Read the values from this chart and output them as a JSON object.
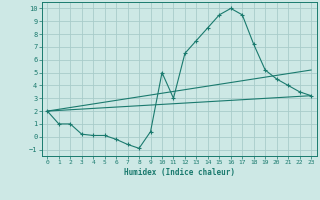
{
  "xlabel": "Humidex (Indice chaleur)",
  "ylabel": "",
  "bg_color": "#cde8e5",
  "grid_color": "#a8ccca",
  "line_color": "#1a7a6e",
  "xlim": [
    -0.5,
    23.5
  ],
  "ylim": [
    -1.5,
    10.5
  ],
  "xticks": [
    0,
    1,
    2,
    3,
    4,
    5,
    6,
    7,
    8,
    9,
    10,
    11,
    12,
    13,
    14,
    15,
    16,
    17,
    18,
    19,
    20,
    21,
    22,
    23
  ],
  "yticks": [
    -1,
    0,
    1,
    2,
    3,
    4,
    5,
    6,
    7,
    8,
    9,
    10
  ],
  "line1_x": [
    0,
    1,
    2,
    3,
    4,
    5,
    6,
    7,
    8,
    9,
    10,
    11,
    12,
    13,
    14,
    15,
    16,
    17,
    18,
    19,
    20,
    21,
    22,
    23
  ],
  "line1_y": [
    2.0,
    1.0,
    1.0,
    0.2,
    0.1,
    0.1,
    -0.2,
    -0.6,
    -0.9,
    0.4,
    5.0,
    3.0,
    6.5,
    7.5,
    8.5,
    9.5,
    10.0,
    9.5,
    7.2,
    5.2,
    4.5,
    4.0,
    3.5,
    3.2
  ],
  "line2_x": [
    0,
    23
  ],
  "line2_y": [
    2.0,
    3.2
  ],
  "line3_x": [
    0,
    23
  ],
  "line3_y": [
    2.0,
    5.2
  ]
}
